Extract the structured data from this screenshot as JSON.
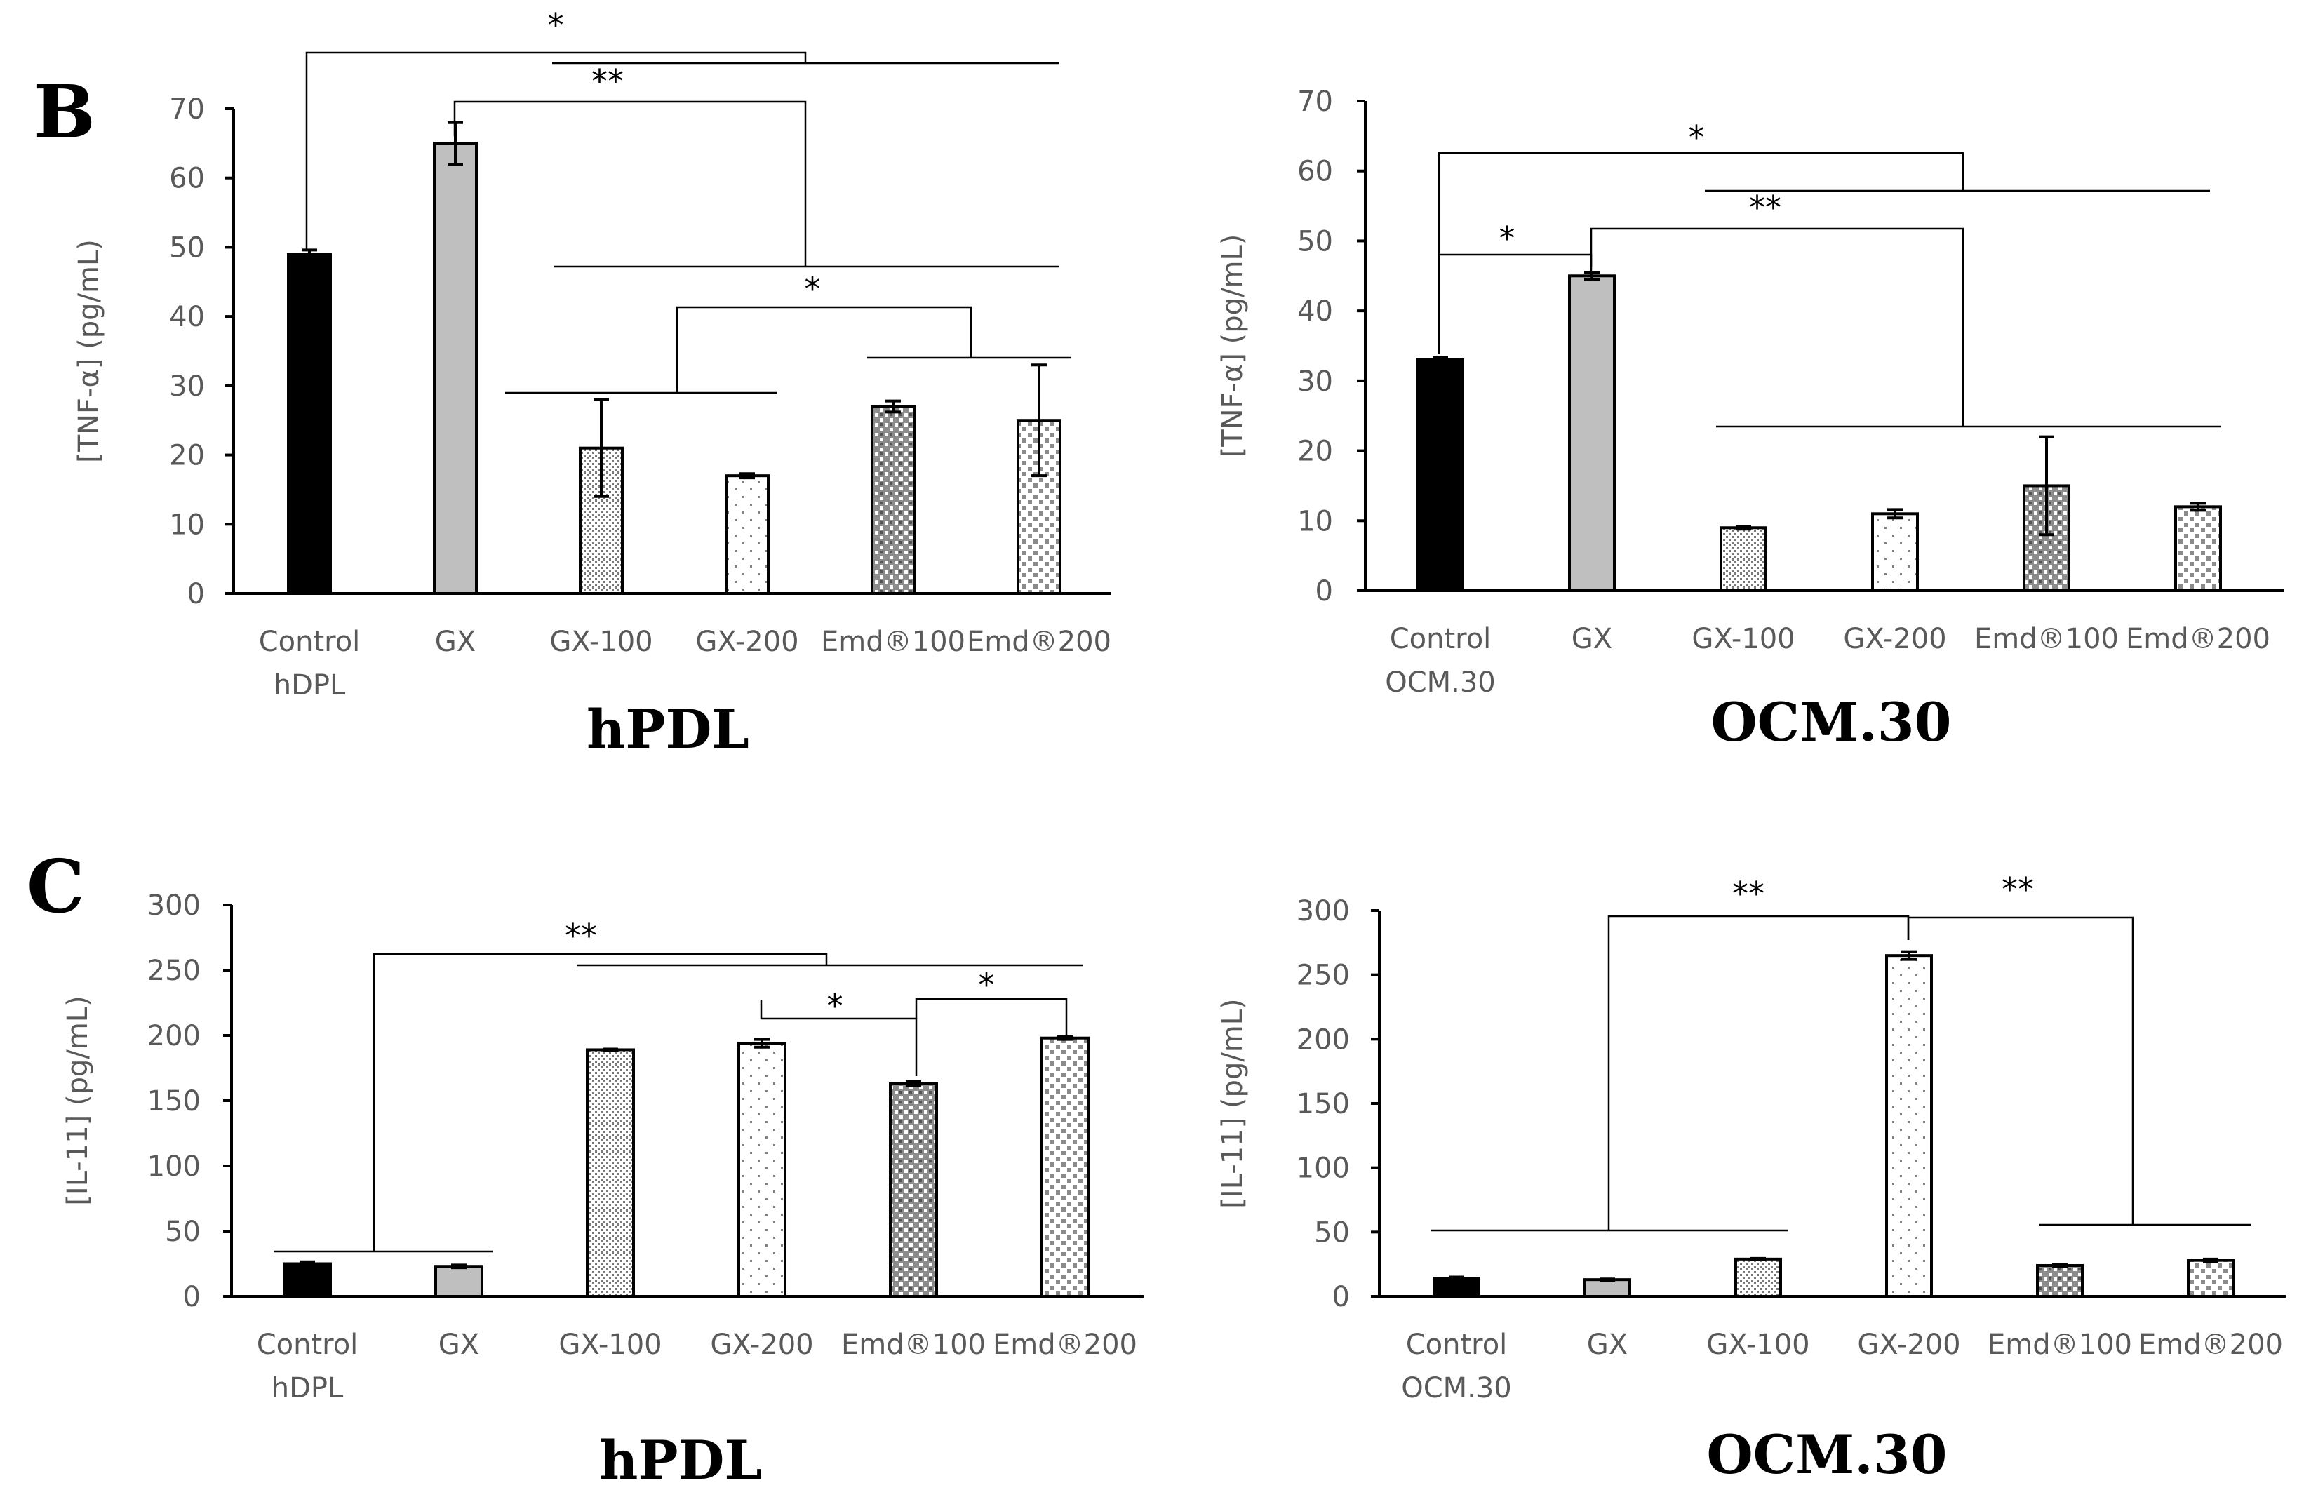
{
  "panels": {
    "B": "B",
    "C": "C"
  },
  "chart_data": [
    {
      "type": "bar",
      "panel": "B",
      "title": "hPDL",
      "ylabel": "[TNF-α] (pg/mL)",
      "ylim": [
        0,
        70
      ],
      "yticks": [
        0,
        10,
        20,
        30,
        40,
        50,
        60,
        70
      ],
      "categories": [
        [
          "Control",
          "hDPL"
        ],
        [
          "GX"
        ],
        [
          "GX-100"
        ],
        [
          "GX-200"
        ],
        [
          "Emd®100"
        ],
        [
          "Emd®200"
        ]
      ],
      "values": [
        49,
        65,
        21,
        17,
        27,
        25
      ],
      "errors": [
        0.6,
        3,
        7,
        0.3,
        0.8,
        8
      ],
      "fills": [
        "#000000",
        "#bfbfbf",
        "pat-fine",
        "pat-sparse",
        "pat-dense",
        "pat-medium"
      ],
      "significance": [
        "*",
        "**",
        "*"
      ]
    },
    {
      "type": "bar",
      "panel": "B",
      "title": "OCM.30",
      "ylabel": "[TNF-α] (pg/mL)",
      "ylim": [
        0,
        70
      ],
      "yticks": [
        0,
        10,
        20,
        30,
        40,
        50,
        60,
        70
      ],
      "categories": [
        [
          "Control",
          "OCM.30"
        ],
        [
          "GX"
        ],
        [
          "GX-100"
        ],
        [
          "GX-200"
        ],
        [
          "Emd®100"
        ],
        [
          "Emd®200"
        ]
      ],
      "values": [
        33,
        45,
        9,
        11,
        15,
        12
      ],
      "errors": [
        0.3,
        0.5,
        0.2,
        0.6,
        7,
        0.5
      ],
      "fills": [
        "#000000",
        "#bfbfbf",
        "pat-fine",
        "pat-sparse",
        "pat-dense",
        "pat-medium"
      ],
      "significance": [
        "*",
        "*",
        "**"
      ]
    },
    {
      "type": "bar",
      "panel": "C",
      "title": "hPDL",
      "ylabel": "[IL-11] (pg/mL)",
      "ylim": [
        0,
        300
      ],
      "yticks": [
        0,
        50,
        100,
        150,
        200,
        250,
        300
      ],
      "categories": [
        [
          "Control",
          "hDPL"
        ],
        [
          "GX"
        ],
        [
          "GX-100"
        ],
        [
          "GX-200"
        ],
        [
          "Emd®100"
        ],
        [
          "Emd®200"
        ]
      ],
      "values": [
        25,
        23,
        189,
        194,
        163,
        198
      ],
      "errors": [
        1.5,
        1,
        0.5,
        3,
        1.5,
        1
      ],
      "fills": [
        "#000000",
        "#bfbfbf",
        "pat-fine",
        "pat-sparse",
        "pat-dense",
        "pat-medium"
      ],
      "significance": [
        "**",
        "*",
        "*"
      ]
    },
    {
      "type": "bar",
      "panel": "C",
      "title": "OCM.30",
      "ylabel": "[IL-11] (pg/mL)",
      "ylim": [
        0,
        300
      ],
      "yticks": [
        0,
        50,
        100,
        150,
        200,
        250,
        300
      ],
      "categories": [
        [
          "Control",
          "OCM.30"
        ],
        [
          "GX"
        ],
        [
          "GX-100"
        ],
        [
          "GX-200"
        ],
        [
          "Emd®100"
        ],
        [
          "Emd®200"
        ]
      ],
      "values": [
        14,
        13,
        29,
        265,
        24,
        28
      ],
      "errors": [
        1,
        0.5,
        0.5,
        3,
        0.8,
        1
      ],
      "fills": [
        "#000000",
        "#bfbfbf",
        "pat-fine",
        "pat-sparse",
        "pat-dense",
        "pat-medium"
      ],
      "significance": [
        "**",
        "**"
      ]
    }
  ]
}
